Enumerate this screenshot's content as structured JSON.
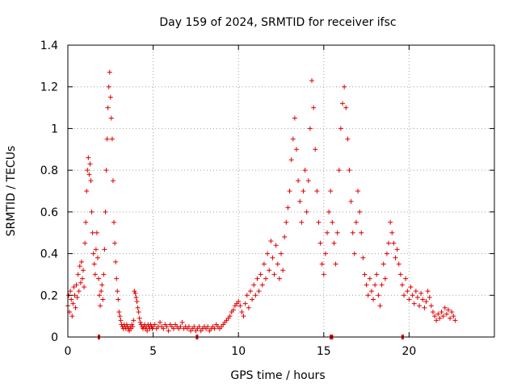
{
  "chart_data": {
    "type": "scatter",
    "title": "Day 159 of 2024, SRMTID for receiver ifsc",
    "xlabel": "GPS time / hours",
    "ylabel": "SRMTID / TECUs",
    "xlim": [
      0,
      25
    ],
    "ylim": [
      0,
      1.4
    ],
    "xticks": [
      0,
      5,
      10,
      15,
      20
    ],
    "yticks": [
      0,
      0.2,
      0.4,
      0.6,
      0.8,
      1,
      1.2,
      1.4
    ],
    "xtick_labels": [
      "0",
      "5",
      "10",
      "15",
      "20"
    ],
    "ytick_labels": [
      "0",
      "0.2",
      "0.4",
      "0.6",
      "0.8",
      "1",
      "1.2",
      "1.4"
    ],
    "grid": true,
    "marker": "+",
    "color": "#e00000",
    "series": [
      {
        "name": "SRMTID",
        "points": [
          [
            0.0,
            0.15
          ],
          [
            0.05,
            0.2
          ],
          [
            0.1,
            0.12
          ],
          [
            0.15,
            0.22
          ],
          [
            0.2,
            0.18
          ],
          [
            0.25,
            0.1
          ],
          [
            0.3,
            0.16
          ],
          [
            0.35,
            0.24
          ],
          [
            0.4,
            0.2
          ],
          [
            0.45,
            0.14
          ],
          [
            0.5,
            0.25
          ],
          [
            0.55,
            0.19
          ],
          [
            0.6,
            0.3
          ],
          [
            0.65,
            0.22
          ],
          [
            0.7,
            0.34
          ],
          [
            0.75,
            0.26
          ],
          [
            0.8,
            0.36
          ],
          [
            0.85,
            0.28
          ],
          [
            0.9,
            0.32
          ],
          [
            0.95,
            0.24
          ],
          [
            1.0,
            0.45
          ],
          [
            1.05,
            0.55
          ],
          [
            1.1,
            0.7
          ],
          [
            1.15,
            0.8
          ],
          [
            1.2,
            0.86
          ],
          [
            1.25,
            0.78
          ],
          [
            1.3,
            0.83
          ],
          [
            1.35,
            0.75
          ],
          [
            1.4,
            0.6
          ],
          [
            1.45,
            0.5
          ],
          [
            1.5,
            0.4
          ],
          [
            1.55,
            0.35
          ],
          [
            1.6,
            0.3
          ],
          [
            1.65,
            0.42
          ],
          [
            1.7,
            0.5
          ],
          [
            1.75,
            0.38
          ],
          [
            1.8,
            0.28
          ],
          [
            1.85,
            0.2
          ],
          [
            1.9,
            0.15
          ],
          [
            1.95,
            0.22
          ],
          [
            2.0,
            0.25
          ],
          [
            2.05,
            0.18
          ],
          [
            2.1,
            0.3
          ],
          [
            2.15,
            0.42
          ],
          [
            2.2,
            0.6
          ],
          [
            2.25,
            0.8
          ],
          [
            2.3,
            0.95
          ],
          [
            2.35,
            1.1
          ],
          [
            2.4,
            1.2
          ],
          [
            2.45,
            1.27
          ],
          [
            2.5,
            1.15
          ],
          [
            2.55,
            1.05
          ],
          [
            2.6,
            0.95
          ],
          [
            2.65,
            0.75
          ],
          [
            2.7,
            0.55
          ],
          [
            2.75,
            0.45
          ],
          [
            2.8,
            0.36
          ],
          [
            2.85,
            0.28
          ],
          [
            2.9,
            0.22
          ],
          [
            2.95,
            0.18
          ],
          [
            3.0,
            0.12
          ],
          [
            3.05,
            0.1
          ],
          [
            3.1,
            0.08
          ],
          [
            3.15,
            0.06
          ],
          [
            3.2,
            0.05
          ],
          [
            3.25,
            0.04
          ],
          [
            3.3,
            0.06
          ],
          [
            3.35,
            0.05
          ],
          [
            3.4,
            0.04
          ],
          [
            3.45,
            0.06
          ],
          [
            3.5,
            0.05
          ],
          [
            3.55,
            0.04
          ],
          [
            3.6,
            0.03
          ],
          [
            3.65,
            0.05
          ],
          [
            3.7,
            0.04
          ],
          [
            3.75,
            0.06
          ],
          [
            3.8,
            0.05
          ],
          [
            3.85,
            0.08
          ],
          [
            3.9,
            0.22
          ],
          [
            3.95,
            0.21
          ],
          [
            4.0,
            0.19
          ],
          [
            4.05,
            0.17
          ],
          [
            4.1,
            0.14
          ],
          [
            4.15,
            0.12
          ],
          [
            4.2,
            0.09
          ],
          [
            4.25,
            0.07
          ],
          [
            4.3,
            0.06
          ],
          [
            4.35,
            0.05
          ],
          [
            4.4,
            0.04
          ],
          [
            4.45,
            0.05
          ],
          [
            4.5,
            0.06
          ],
          [
            4.55,
            0.04
          ],
          [
            4.6,
            0.05
          ],
          [
            4.65,
            0.03
          ],
          [
            4.7,
            0.06
          ],
          [
            4.75,
            0.05
          ],
          [
            4.8,
            0.04
          ],
          [
            4.85,
            0.06
          ],
          [
            4.9,
            0.05
          ],
          [
            4.95,
            0.04
          ],
          [
            5.0,
            0.05
          ],
          [
            5.1,
            0.06
          ],
          [
            5.2,
            0.04
          ],
          [
            5.3,
            0.05
          ],
          [
            5.4,
            0.07
          ],
          [
            5.5,
            0.05
          ],
          [
            5.6,
            0.04
          ],
          [
            5.7,
            0.06
          ],
          [
            5.8,
            0.05
          ],
          [
            5.9,
            0.03
          ],
          [
            6.0,
            0.06
          ],
          [
            6.1,
            0.05
          ],
          [
            6.2,
            0.04
          ],
          [
            6.3,
            0.06
          ],
          [
            6.4,
            0.05
          ],
          [
            6.5,
            0.04
          ],
          [
            6.6,
            0.05
          ],
          [
            6.7,
            0.07
          ],
          [
            6.8,
            0.04
          ],
          [
            6.9,
            0.05
          ],
          [
            7.0,
            0.04
          ],
          [
            7.1,
            0.05
          ],
          [
            7.2,
            0.03
          ],
          [
            7.3,
            0.04
          ],
          [
            7.4,
            0.05
          ],
          [
            7.5,
            0.03
          ],
          [
            7.6,
            0.04
          ],
          [
            7.7,
            0.05
          ],
          [
            7.8,
            0.03
          ],
          [
            7.9,
            0.04
          ],
          [
            8.0,
            0.05
          ],
          [
            8.1,
            0.04
          ],
          [
            8.2,
            0.05
          ],
          [
            8.3,
            0.03
          ],
          [
            8.4,
            0.04
          ],
          [
            8.5,
            0.05
          ],
          [
            8.6,
            0.04
          ],
          [
            8.7,
            0.06
          ],
          [
            8.8,
            0.05
          ],
          [
            8.9,
            0.04
          ],
          [
            9.0,
            0.05
          ],
          [
            9.1,
            0.06
          ],
          [
            9.2,
            0.07
          ],
          [
            9.3,
            0.08
          ],
          [
            9.4,
            0.09
          ],
          [
            9.5,
            0.1
          ],
          [
            9.6,
            0.12
          ],
          [
            9.7,
            0.13
          ],
          [
            9.8,
            0.15
          ],
          [
            9.9,
            0.16
          ],
          [
            10.0,
            0.17
          ],
          [
            10.1,
            0.15
          ],
          [
            10.2,
            0.12
          ],
          [
            10.3,
            0.1
          ],
          [
            10.4,
            0.16
          ],
          [
            10.5,
            0.2
          ],
          [
            10.6,
            0.14
          ],
          [
            10.7,
            0.22
          ],
          [
            10.8,
            0.18
          ],
          [
            10.9,
            0.25
          ],
          [
            11.0,
            0.2
          ],
          [
            11.1,
            0.28
          ],
          [
            11.2,
            0.22
          ],
          [
            11.3,
            0.3
          ],
          [
            11.4,
            0.25
          ],
          [
            11.5,
            0.35
          ],
          [
            11.6,
            0.28
          ],
          [
            11.7,
            0.4
          ],
          [
            11.8,
            0.32
          ],
          [
            11.9,
            0.46
          ],
          [
            12.0,
            0.38
          ],
          [
            12.1,
            0.3
          ],
          [
            12.2,
            0.44
          ],
          [
            12.3,
            0.35
          ],
          [
            12.4,
            0.28
          ],
          [
            12.5,
            0.4
          ],
          [
            12.6,
            0.32
          ],
          [
            12.7,
            0.48
          ],
          [
            12.8,
            0.55
          ],
          [
            12.9,
            0.62
          ],
          [
            13.0,
            0.7
          ],
          [
            13.1,
            0.85
          ],
          [
            13.2,
            0.95
          ],
          [
            13.3,
            1.05
          ],
          [
            13.4,
            0.9
          ],
          [
            13.5,
            0.75
          ],
          [
            13.6,
            0.65
          ],
          [
            13.7,
            0.55
          ],
          [
            13.8,
            0.7
          ],
          [
            13.9,
            0.8
          ],
          [
            14.0,
            0.6
          ],
          [
            14.1,
            0.75
          ],
          [
            14.2,
            1.0
          ],
          [
            14.3,
            1.23
          ],
          [
            14.4,
            1.1
          ],
          [
            14.5,
            0.9
          ],
          [
            14.6,
            0.7
          ],
          [
            14.7,
            0.55
          ],
          [
            14.8,
            0.45
          ],
          [
            14.9,
            0.35
          ],
          [
            15.0,
            0.3
          ],
          [
            15.1,
            0.4
          ],
          [
            15.2,
            0.5
          ],
          [
            15.3,
            0.6
          ],
          [
            15.4,
            0.7
          ],
          [
            15.5,
            0.55
          ],
          [
            15.6,
            0.45
          ],
          [
            15.7,
            0.35
          ],
          [
            15.8,
            0.5
          ],
          [
            15.9,
            0.8
          ],
          [
            16.0,
            1.0
          ],
          [
            16.1,
            1.12
          ],
          [
            16.2,
            1.2
          ],
          [
            16.3,
            1.1
          ],
          [
            16.4,
            0.95
          ],
          [
            16.5,
            0.8
          ],
          [
            16.6,
            0.65
          ],
          [
            16.7,
            0.5
          ],
          [
            16.8,
            0.4
          ],
          [
            16.9,
            0.55
          ],
          [
            17.0,
            0.7
          ],
          [
            17.1,
            0.6
          ],
          [
            17.2,
            0.5
          ],
          [
            17.3,
            0.38
          ],
          [
            17.4,
            0.3
          ],
          [
            17.5,
            0.25
          ],
          [
            17.6,
            0.2
          ],
          [
            17.7,
            0.28
          ],
          [
            17.8,
            0.22
          ],
          [
            17.9,
            0.18
          ],
          [
            18.0,
            0.25
          ],
          [
            18.1,
            0.3
          ],
          [
            18.2,
            0.2
          ],
          [
            18.3,
            0.15
          ],
          [
            18.4,
            0.25
          ],
          [
            18.5,
            0.35
          ],
          [
            18.6,
            0.28
          ],
          [
            18.7,
            0.4
          ],
          [
            18.8,
            0.45
          ],
          [
            18.9,
            0.55
          ],
          [
            19.0,
            0.5
          ],
          [
            19.1,
            0.45
          ],
          [
            19.2,
            0.38
          ],
          [
            19.3,
            0.42
          ],
          [
            19.4,
            0.35
          ],
          [
            19.5,
            0.3
          ],
          [
            19.6,
            0.25
          ],
          [
            19.7,
            0.2
          ],
          [
            19.8,
            0.28
          ],
          [
            19.9,
            0.22
          ],
          [
            20.0,
            0.18
          ],
          [
            20.1,
            0.24
          ],
          [
            20.2,
            0.2
          ],
          [
            20.3,
            0.16
          ],
          [
            20.4,
            0.22
          ],
          [
            20.5,
            0.19
          ],
          [
            20.6,
            0.15
          ],
          [
            20.7,
            0.21
          ],
          [
            20.8,
            0.18
          ],
          [
            20.9,
            0.14
          ],
          [
            21.0,
            0.17
          ],
          [
            21.1,
            0.22
          ],
          [
            21.2,
            0.19
          ],
          [
            21.3,
            0.15
          ],
          [
            21.4,
            0.12
          ],
          [
            21.5,
            0.1
          ],
          [
            21.6,
            0.08
          ],
          [
            21.7,
            0.11
          ],
          [
            21.8,
            0.09
          ],
          [
            21.9,
            0.12
          ],
          [
            22.0,
            0.1
          ],
          [
            22.1,
            0.14
          ],
          [
            22.2,
            0.11
          ],
          [
            22.3,
            0.13
          ],
          [
            22.4,
            0.09
          ],
          [
            22.5,
            0.12
          ],
          [
            22.6,
            0.1
          ],
          [
            22.7,
            0.08
          ]
        ]
      }
    ],
    "data_gaps": [
      {
        "start": 1.75,
        "end": 1.85
      },
      {
        "start": 7.5,
        "end": 7.6
      },
      {
        "start": 15.35,
        "end": 15.55
      },
      {
        "start": 19.55,
        "end": 19.65
      }
    ]
  }
}
